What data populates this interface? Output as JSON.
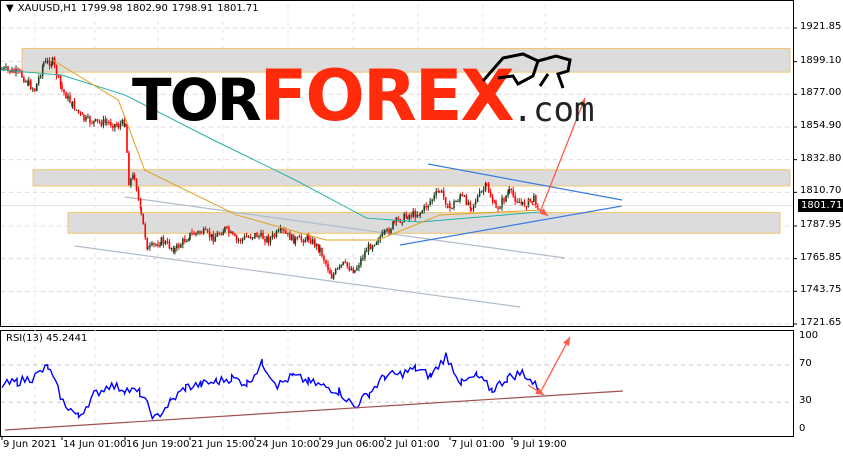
{
  "header": {
    "collapse_icon": "triangle-down-icon",
    "symbol": "XAUUSD,H1",
    "open": "1799.98",
    "high": "1802.90",
    "low": "1798.91",
    "close": "1801.71"
  },
  "logo": {
    "tor": "TOR",
    "forex": "FOREX",
    ".com": ".com",
    "icon": "bull-icon"
  },
  "colors": {
    "bull": "#1f3d1f",
    "bear": "#ff0000",
    "ma_fast": "#e0a020",
    "ma_slow": "#20b0a8",
    "zone": "#d9d9d9",
    "zone_border": "#f0c060",
    "trend_blue": "#3a7de0",
    "channel": "#b0bccc",
    "arrow": "#ff5a4a",
    "rsi": "#0000ff",
    "rsi_trend": "#a05050"
  },
  "price_axis": {
    "ticks": [
      "1921.85",
      "1899.10",
      "1877.00",
      "1854.90",
      "1832.80",
      "1810.70",
      "1787.95",
      "1765.85",
      "1743.75",
      "1721.65"
    ],
    "current": "1801.71"
  },
  "rsi": {
    "label": "RSI(13) 45.2441",
    "ticks": [
      "100",
      "70",
      "30",
      "0"
    ],
    "values": [
      48,
      52,
      56,
      68,
      30,
      14,
      38,
      48,
      44,
      40,
      12,
      30,
      46,
      49,
      52,
      56,
      50,
      72,
      48,
      58,
      52,
      47,
      42,
      25,
      40,
      58,
      60,
      66,
      58,
      80,
      50,
      58,
      43,
      56,
      62,
      45.2441
    ]
  },
  "time_axis": {
    "ticks": [
      "9 Jun 2021",
      "14 Jun 01:00",
      "16 Jun 19:00",
      "21 Jun 15:00",
      "24 Jun 10:00",
      "29 Jun 06:00",
      "2 Jul 01:00",
      "7 Jul 01:00",
      "9 Jul 19:00"
    ],
    "tick_times": [
      "2021-06-09T00:00",
      "2021-06-14T01:00",
      "2021-06-16T19:00",
      "2021-06-21T15:00",
      "2021-06-24T10:00",
      "2021-06-29T06:00",
      "2021-07-02T01:00",
      "2021-07-07T01:00",
      "2021-07-09T19:00"
    ]
  },
  "chart_data": {
    "type": "line",
    "ylim": [
      1721.65,
      1921.85
    ],
    "price": [
      [
        "2021-06-09T00:00",
        1894
      ],
      [
        "2021-06-10T12:00",
        1891
      ],
      [
        "2021-06-11T06:00",
        1884
      ],
      [
        "2021-06-11T18:00",
        1880
      ],
      [
        "2021-06-12T12:00",
        1898
      ],
      [
        "2021-06-13T06:00",
        1899
      ],
      [
        "2021-06-14T01:00",
        1880
      ],
      [
        "2021-06-14T12:00",
        1870
      ],
      [
        "2021-06-15T00:00",
        1860
      ],
      [
        "2021-06-15T12:00",
        1858
      ],
      [
        "2021-06-16T00:00",
        1858
      ],
      [
        "2021-06-16T12:00",
        1856
      ],
      [
        "2021-06-16T19:00",
        1858
      ],
      [
        "2021-06-17T02:00",
        1818
      ],
      [
        "2021-06-17T12:00",
        1822
      ],
      [
        "2021-06-18T00:00",
        1795
      ],
      [
        "2021-06-18T12:00",
        1772
      ],
      [
        "2021-06-19T12:00",
        1778
      ],
      [
        "2021-06-20T12:00",
        1772
      ],
      [
        "2021-06-21T15:00",
        1782
      ],
      [
        "2021-06-22T03:00",
        1784
      ],
      [
        "2021-06-22T15:00",
        1780
      ],
      [
        "2021-06-23T03:00",
        1786
      ],
      [
        "2021-06-23T15:00",
        1778
      ],
      [
        "2021-06-24T10:00",
        1782
      ],
      [
        "2021-06-25T10:00",
        1779
      ],
      [
        "2021-06-26T10:00",
        1784
      ],
      [
        "2021-06-27T10:00",
        1778
      ],
      [
        "2021-06-28T10:00",
        1780
      ],
      [
        "2021-06-29T06:00",
        1772
      ],
      [
        "2021-06-29T18:00",
        1754
      ],
      [
        "2021-06-30T06:00",
        1762
      ],
      [
        "2021-06-30T18:00",
        1758
      ],
      [
        "2021-07-01T06:00",
        1772
      ],
      [
        "2021-07-01T18:00",
        1780
      ],
      [
        "2021-07-02T01:00",
        1782
      ],
      [
        "2021-07-02T18:00",
        1790
      ],
      [
        "2021-07-03T18:00",
        1795
      ],
      [
        "2021-07-04T18:00",
        1797
      ],
      [
        "2021-07-06T06:00",
        1812
      ],
      [
        "2021-07-07T01:00",
        1800
      ],
      [
        "2021-07-07T12:00",
        1808
      ],
      [
        "2021-07-08T00:00",
        1802
      ],
      [
        "2021-07-08T16:00",
        1815
      ],
      [
        "2021-07-09T02:00",
        1799
      ],
      [
        "2021-07-09T16:00",
        1811
      ],
      [
        "2021-07-10T06:00",
        1802
      ],
      [
        "2021-07-10T18:00",
        1806
      ],
      [
        "2021-07-11T00:00",
        1801.71
      ]
    ],
    "ma_fast": [
      [
        "2021-06-13T06:00",
        1900.2
      ],
      [
        "2021-06-16T12:00",
        1873.1
      ],
      [
        "2021-06-18T06:00",
        1825.8
      ],
      [
        "2021-06-23T15:00",
        1795.4
      ],
      [
        "2021-06-29T12:00",
        1778.5
      ],
      [
        "2021-07-01T18:00",
        1778.5
      ],
      [
        "2021-07-06T06:00",
        1795.4
      ],
      [
        "2021-07-11T00:00",
        1798.7
      ]
    ],
    "ma_slow": [
      [
        "2021-06-09T00:00",
        1893.4
      ],
      [
        "2021-06-14T01:00",
        1890
      ],
      [
        "2021-06-16T19:00",
        1876.5
      ],
      [
        "2021-06-22T15:00",
        1846.1
      ],
      [
        "2021-06-27T10:00",
        1819
      ],
      [
        "2021-07-01T06:00",
        1793.3
      ],
      [
        "2021-07-04T18:00",
        1790.6
      ],
      [
        "2021-07-11T00:00",
        1797.4
      ]
    ],
    "zones": [
      [
        1892,
        1908
      ],
      [
        1815,
        1826
      ],
      [
        1783,
        1797
      ]
    ]
  }
}
